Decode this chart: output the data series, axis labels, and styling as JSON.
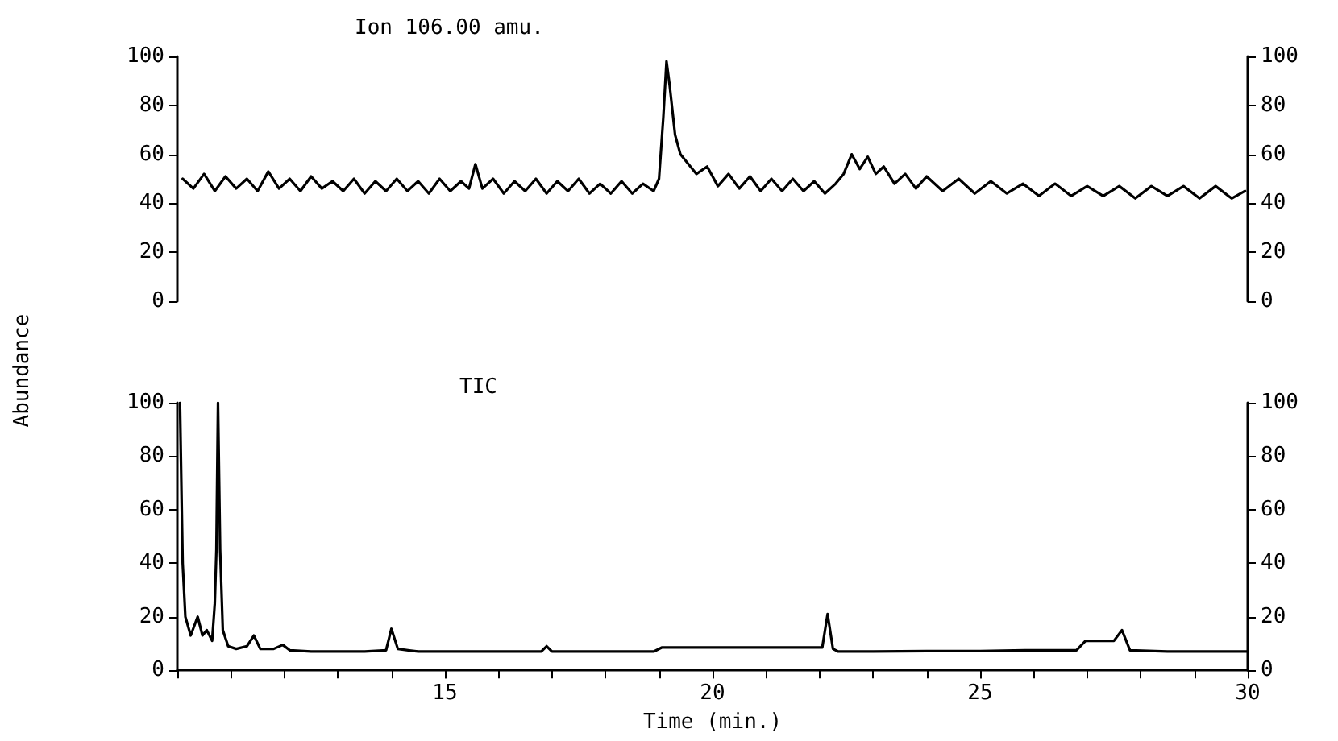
{
  "chart_data": [
    {
      "type": "line",
      "title": "Ion 106.00 amu.",
      "ylabel": "Abundance",
      "marker": "none",
      "line_style": "solid",
      "tick_labels": "y",
      "x": [
        10.1,
        10.3,
        10.5,
        10.7,
        10.9,
        11.1,
        11.3,
        11.5,
        11.7,
        11.9,
        12.1,
        12.3,
        12.5,
        12.7,
        12.9,
        13.1,
        13.3,
        13.5,
        13.7,
        13.9,
        14.1,
        14.3,
        14.5,
        14.7,
        14.9,
        15.1,
        15.3,
        15.45,
        15.57,
        15.7,
        15.9,
        16.1,
        16.3,
        16.5,
        16.7,
        16.9,
        17.1,
        17.3,
        17.5,
        17.7,
        17.9,
        18.1,
        18.3,
        18.5,
        18.7,
        18.9,
        19.0,
        19.08,
        19.14,
        19.2,
        19.3,
        19.4,
        19.55,
        19.7,
        19.9,
        20.1,
        20.3,
        20.5,
        20.7,
        20.9,
        21.1,
        21.3,
        21.5,
        21.7,
        21.9,
        22.1,
        22.3,
        22.45,
        22.6,
        22.75,
        22.9,
        23.05,
        23.2,
        23.4,
        23.6,
        23.8,
        24.0,
        24.3,
        24.6,
        24.9,
        25.2,
        25.5,
        25.8,
        26.1,
        26.4,
        26.7,
        27.0,
        27.3,
        27.6,
        27.9,
        28.2,
        28.5,
        28.8,
        29.1,
        29.4,
        29.7,
        29.95
      ],
      "series": [
        {
          "color": "#000000",
          "values": [
            50,
            46,
            52,
            45,
            51,
            46,
            50,
            45,
            53,
            46,
            50,
            45,
            51,
            46,
            49,
            45,
            50,
            44,
            49,
            45,
            50,
            45,
            49,
            44,
            50,
            45,
            49,
            46,
            56,
            46,
            50,
            44,
            49,
            45,
            50,
            44,
            49,
            45,
            50,
            44,
            48,
            44,
            49,
            44,
            48,
            45,
            50,
            75,
            98,
            88,
            68,
            60,
            56,
            52,
            55,
            47,
            52,
            46,
            51,
            45,
            50,
            45,
            50,
            45,
            49,
            44,
            48,
            52,
            60,
            54,
            59,
            52,
            55,
            48,
            52,
            46,
            51,
            45,
            50,
            44,
            49,
            44,
            48,
            43,
            48,
            43,
            47,
            43,
            47,
            42,
            47,
            43,
            47,
            42,
            47,
            42,
            45
          ]
        }
      ],
      "xlim": [
        10,
        30
      ],
      "ylim": [
        0,
        100
      ],
      "yticks": [
        0,
        20,
        40,
        60,
        80,
        100
      ],
      "y2lim": [
        0,
        100
      ],
      "y2ticks": [
        0,
        20,
        40,
        60,
        80,
        100
      ]
    },
    {
      "type": "line",
      "title": "TIC",
      "xlabel": "Time (min.)",
      "marker": "none",
      "line_style": "solid",
      "x": [
        10.05,
        10.1,
        10.15,
        10.25,
        10.38,
        10.47,
        10.55,
        10.65,
        10.7,
        10.73,
        10.76,
        10.8,
        10.85,
        10.95,
        11.1,
        11.3,
        11.43,
        11.55,
        11.8,
        11.97,
        12.1,
        12.5,
        13,
        13.5,
        13.9,
        14.0,
        14.12,
        14.5,
        15,
        15.5,
        16,
        16.8,
        16.9,
        17.0,
        17.5,
        18,
        18.9,
        19.05,
        20,
        21,
        22.05,
        22.15,
        22.25,
        22.35,
        23,
        24,
        25,
        26,
        26.8,
        26.97,
        27.5,
        27.65,
        27.8,
        28.5,
        29,
        29.5,
        30
      ],
      "series": [
        {
          "color": "#000000",
          "values": [
            100,
            40,
            20,
            13,
            20,
            13,
            15,
            11,
            25,
            45,
            100,
            45,
            15,
            9,
            8,
            9,
            13,
            8,
            8,
            9.5,
            7.5,
            7,
            7,
            7,
            7.5,
            15.5,
            8,
            7,
            7,
            7,
            7,
            7,
            9,
            7,
            7,
            7,
            7,
            8.5,
            8.5,
            8.5,
            8.5,
            21,
            8,
            7,
            7,
            7.2,
            7.2,
            7.5,
            7.5,
            11,
            11,
            15,
            7.5,
            7,
            7,
            7,
            7
          ]
        }
      ],
      "xlim": [
        10,
        30
      ],
      "xticks": [
        15,
        20,
        25,
        30
      ],
      "ylim": [
        0,
        100
      ],
      "yticks": [
        0,
        20,
        40,
        60,
        80,
        100
      ],
      "y2lim": [
        0,
        100
      ],
      "y2ticks": [
        0,
        20,
        40,
        60,
        80,
        100
      ]
    }
  ]
}
